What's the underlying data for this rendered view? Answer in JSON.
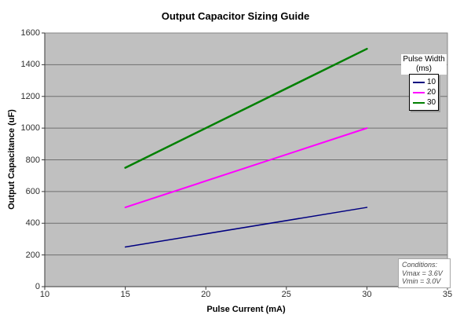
{
  "title": "Output Capacitor Sizing Guide",
  "legend": {
    "title_line1": "Pulse Width",
    "title_line2": "(ms)",
    "entries": [
      {
        "label": "10",
        "color": "#000080"
      },
      {
        "label": "20",
        "color": "#ff00ff"
      },
      {
        "label": "30",
        "color": "#008000"
      }
    ]
  },
  "conditions": {
    "lines": [
      "Conditions:",
      "Vmax = 3.6V",
      "Vmin = 3.0V"
    ]
  },
  "chart_data": {
    "type": "line",
    "title": "Output Capacitor Sizing Guide",
    "xlabel": "Pulse Current (mA)",
    "ylabel": "Output Capacitance (uF)",
    "xlim": [
      10,
      35
    ],
    "ylim": [
      0,
      1600
    ],
    "x_ticks": [
      10,
      15,
      20,
      25,
      30,
      35
    ],
    "y_ticks": [
      0,
      200,
      400,
      600,
      800,
      1000,
      1200,
      1400,
      1600
    ],
    "grid": "horizontal-only",
    "plot_background": "#c0c0c0",
    "gridline_color": "#6f6f6f",
    "axis_color": "#3a3a3a",
    "legend_title": "Pulse Width (ms)",
    "legend_position": "top-right",
    "series": [
      {
        "name": "10",
        "color": "#000080",
        "points": [
          [
            15,
            250
          ],
          [
            30,
            500
          ]
        ]
      },
      {
        "name": "20",
        "color": "#ff00ff",
        "points": [
          [
            15,
            500
          ],
          [
            30,
            1000
          ]
        ]
      },
      {
        "name": "30",
        "color": "#008000",
        "points": [
          [
            15,
            750
          ],
          [
            30,
            1500
          ]
        ]
      }
    ],
    "annotations": [
      "Conditions:",
      "Vmax = 3.6V",
      "Vmin = 3.0V"
    ]
  }
}
